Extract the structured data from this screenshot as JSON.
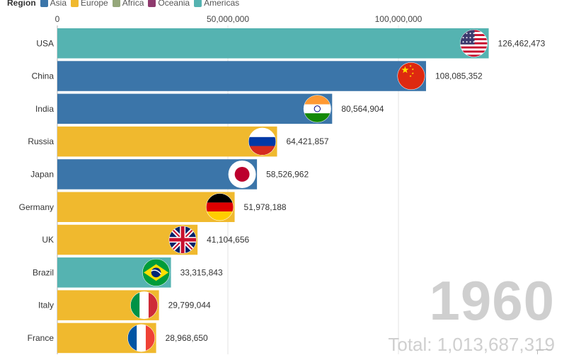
{
  "legend": {
    "title": "Region",
    "items": [
      {
        "label": "Asia",
        "color": "#3b75a9"
      },
      {
        "label": "Europe",
        "color": "#f0b92e"
      },
      {
        "label": "Africa",
        "color": "#95a77a"
      },
      {
        "label": "Oceania",
        "color": "#8e3a6e"
      },
      {
        "label": "Americas",
        "color": "#55b3b1"
      }
    ]
  },
  "overlay": {
    "year": "1960",
    "total": "Total: 1,013,687,319"
  },
  "chart_data": {
    "type": "bar",
    "orientation": "horizontal",
    "title": "",
    "xlabel": "",
    "ylabel": "",
    "xlim": [
      0,
      150000000
    ],
    "x_ticks": [
      {
        "value": 0,
        "label": "0"
      },
      {
        "value": 50000000,
        "label": "50,000,000"
      },
      {
        "value": 100000000,
        "label": "100,000,000"
      }
    ],
    "categories": [
      "USA",
      "China",
      "India",
      "Russia",
      "Japan",
      "Germany",
      "UK",
      "Brazil",
      "Italy",
      "France"
    ],
    "values": [
      126462473,
      108085352,
      80564904,
      64421857,
      58526962,
      51978188,
      41104656,
      33315843,
      29799044,
      28968650
    ],
    "value_labels": [
      "126,462,473",
      "108,085,352",
      "80,564,904",
      "64,421,857",
      "58,526,962",
      "51,978,188",
      "41,104,656",
      "33,315,843",
      "29,799,044",
      "28,968,650"
    ],
    "regions": [
      "Americas",
      "Asia",
      "Asia",
      "Europe",
      "Asia",
      "Europe",
      "Europe",
      "Americas",
      "Europe",
      "Europe"
    ],
    "flags": [
      "usa-flag-icon",
      "china-flag-icon",
      "india-flag-icon",
      "russia-flag-icon",
      "japan-flag-icon",
      "germany-flag-icon",
      "uk-flag-icon",
      "brazil-flag-icon",
      "italy-flag-icon",
      "france-flag-icon"
    ]
  }
}
